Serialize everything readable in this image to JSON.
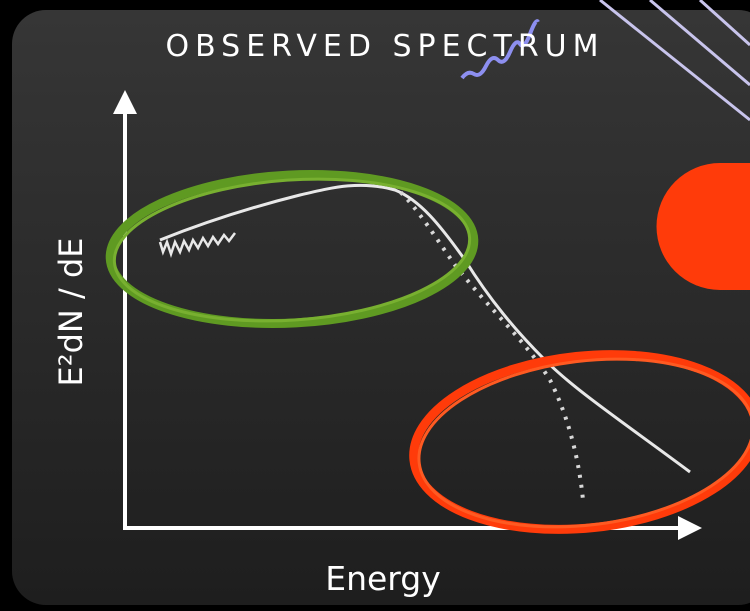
{
  "title": "OBSERVED SPECTRUM",
  "y_axis_label": "E²dN / dE",
  "x_axis_label": "Energy"
}
